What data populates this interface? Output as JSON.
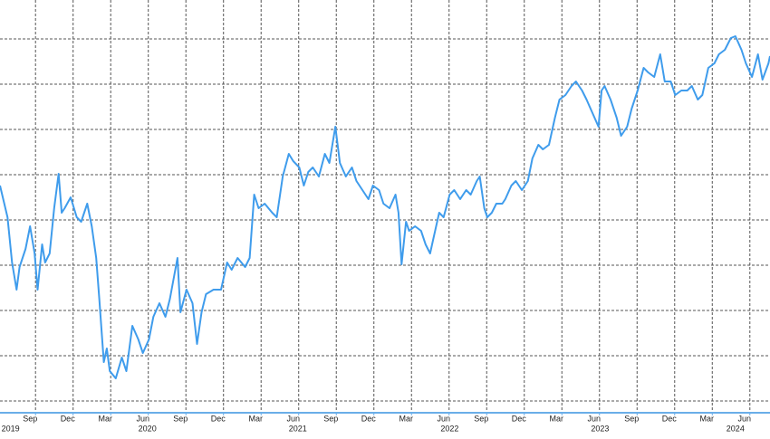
{
  "chart_data": {
    "type": "line",
    "color": "#3f9cec",
    "grid": true,
    "xlim": [
      2019.47,
      2024.59
    ],
    "ylim": [
      -12,
      443
    ],
    "yticks": [
      0,
      50,
      100,
      150,
      200,
      250,
      300,
      350,
      400
    ],
    "xticks": [
      {
        "value": 2019.67,
        "label": "Sep"
      },
      {
        "value": 2019.92,
        "label": "Dec"
      },
      {
        "value": 2020.17,
        "label": "Mar"
      },
      {
        "value": 2020.42,
        "label": "Jun"
      },
      {
        "value": 2020.67,
        "label": "Sep"
      },
      {
        "value": 2020.92,
        "label": "Dec"
      },
      {
        "value": 2021.17,
        "label": "Mar"
      },
      {
        "value": 2021.42,
        "label": "Jun"
      },
      {
        "value": 2021.67,
        "label": "Sep"
      },
      {
        "value": 2021.92,
        "label": "Dec"
      },
      {
        "value": 2022.17,
        "label": "Mar"
      },
      {
        "value": 2022.42,
        "label": "Jun"
      },
      {
        "value": 2022.67,
        "label": "Sep"
      },
      {
        "value": 2022.92,
        "label": "Dec"
      },
      {
        "value": 2023.17,
        "label": "Mar"
      },
      {
        "value": 2023.42,
        "label": "Jun"
      },
      {
        "value": 2023.67,
        "label": "Sep"
      },
      {
        "value": 2023.92,
        "label": "Dec"
      },
      {
        "value": 2024.17,
        "label": "Mar"
      },
      {
        "value": 2024.42,
        "label": "Jun"
      }
    ],
    "year_ticks": [
      {
        "value": 2019.54,
        "label": "2019"
      },
      {
        "value": 2020.45,
        "label": "2020"
      },
      {
        "value": 2021.45,
        "label": "2021"
      },
      {
        "value": 2022.46,
        "label": "2022"
      },
      {
        "value": 2023.46,
        "label": "2023"
      },
      {
        "value": 2024.36,
        "label": "2024"
      }
    ],
    "x": [
      2019.47,
      2019.52,
      2019.55,
      2019.58,
      2019.6,
      2019.64,
      2019.67,
      2019.7,
      2019.72,
      2019.75,
      2019.77,
      2019.8,
      2019.83,
      2019.86,
      2019.88,
      2019.9,
      2019.94,
      2019.98,
      2020.01,
      2020.05,
      2020.08,
      2020.11,
      2020.13,
      2020.16,
      2020.18,
      2020.2,
      2020.24,
      2020.28,
      2020.31,
      2020.35,
      2020.39,
      2020.42,
      2020.46,
      2020.49,
      2020.53,
      2020.57,
      2020.6,
      2020.65,
      2020.67,
      2020.71,
      2020.75,
      2020.78,
      2020.81,
      2020.84,
      2020.89,
      2020.94,
      2020.98,
      2021.01,
      2021.05,
      2021.1,
      2021.13,
      2021.16,
      2021.19,
      2021.23,
      2021.28,
      2021.31,
      2021.35,
      2021.39,
      2021.42,
      2021.46,
      2021.49,
      2021.52,
      2021.55,
      2021.59,
      2021.63,
      2021.66,
      2021.7,
      2021.73,
      2021.77,
      2021.81,
      2021.84,
      2021.88,
      2021.92,
      2021.95,
      2021.99,
      2022.02,
      2022.06,
      2022.1,
      2022.12,
      2022.14,
      2022.17,
      2022.19,
      2022.23,
      2022.27,
      2022.3,
      2022.33,
      2022.35,
      2022.39,
      2022.42,
      2022.46,
      2022.49,
      2022.53,
      2022.57,
      2022.6,
      2022.64,
      2022.66,
      2022.69,
      2022.71,
      2022.74,
      2022.77,
      2022.81,
      2022.83,
      2022.87,
      2022.9,
      2022.94,
      2022.98,
      2023.01,
      2023.05,
      2023.08,
      2023.12,
      2023.16,
      2023.19,
      2023.23,
      2023.27,
      2023.3,
      2023.34,
      2023.37,
      2023.41,
      2023.45,
      2023.47,
      2023.49,
      2023.53,
      2023.57,
      2023.6,
      2023.64,
      2023.67,
      2023.71,
      2023.75,
      2023.78,
      2023.82,
      2023.86,
      2023.89,
      2023.93,
      2023.96,
      2024.0,
      2024.04,
      2024.07,
      2024.11,
      2024.14,
      2024.18,
      2024.22,
      2024.25,
      2024.29,
      2024.33,
      2024.36,
      2024.4,
      2024.43,
      2024.47,
      2024.51,
      2024.54,
      2024.58,
      2024.59
    ],
    "values": [
      238,
      203,
      153,
      123,
      148,
      168,
      193,
      163,
      123,
      173,
      153,
      163,
      213,
      251,
      208,
      213,
      225,
      203,
      198,
      218,
      193,
      158,
      113,
      43,
      58,
      33,
      25,
      48,
      33,
      83,
      68,
      53,
      68,
      93,
      108,
      93,
      113,
      158,
      98,
      123,
      108,
      63,
      98,
      118,
      123,
      123,
      153,
      145,
      158,
      148,
      158,
      228,
      213,
      218,
      208,
      203,
      248,
      273,
      265,
      258,
      238,
      253,
      258,
      248,
      273,
      263,
      303,
      263,
      248,
      258,
      243,
      233,
      223,
      238,
      233,
      218,
      213,
      228,
      208,
      151,
      198,
      188,
      193,
      188,
      173,
      163,
      178,
      208,
      203,
      228,
      233,
      223,
      233,
      228,
      243,
      248,
      213,
      203,
      208,
      218,
      218,
      223,
      238,
      243,
      233,
      243,
      268,
      283,
      278,
      283,
      313,
      333,
      338,
      348,
      353,
      343,
      333,
      318,
      303,
      343,
      348,
      333,
      313,
      293,
      303,
      323,
      343,
      368,
      363,
      358,
      383,
      353,
      353,
      338,
      343,
      343,
      348,
      333,
      338,
      368,
      373,
      383,
      388,
      401,
      403,
      388,
      373,
      358,
      383,
      355,
      373,
      381
    ]
  }
}
